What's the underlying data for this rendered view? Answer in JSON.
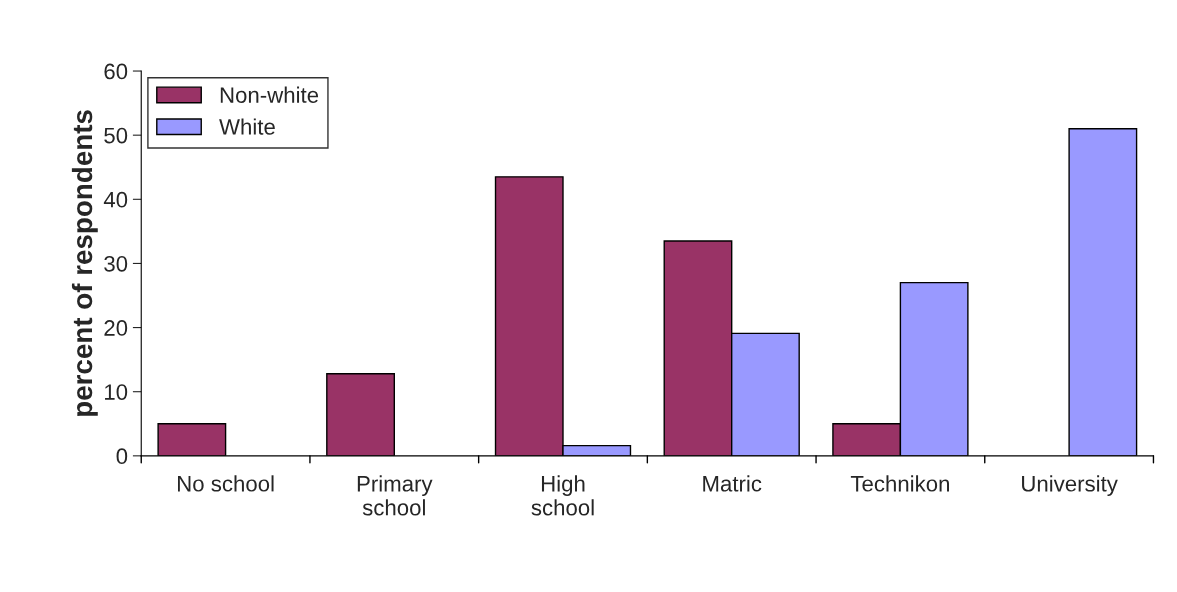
{
  "chart_data": {
    "type": "bar",
    "ylabel": "percent of respondents",
    "categories": [
      "No school",
      "Primary\nschool",
      "High\nschool",
      "Matric",
      "Technikon",
      "University"
    ],
    "series": [
      {
        "name": "Non-white",
        "color": "#993366",
        "values": [
          5.0,
          12.8,
          43.5,
          33.5,
          5.0,
          null
        ]
      },
      {
        "name": "White",
        "color": "#9999ff",
        "values": [
          null,
          null,
          1.6,
          19.1,
          27.0,
          51.0
        ]
      }
    ],
    "ylim": [
      0,
      60
    ],
    "yticks": [
      0,
      10,
      20,
      30,
      40,
      50,
      60
    ],
    "grid": false,
    "legend": "top left"
  }
}
